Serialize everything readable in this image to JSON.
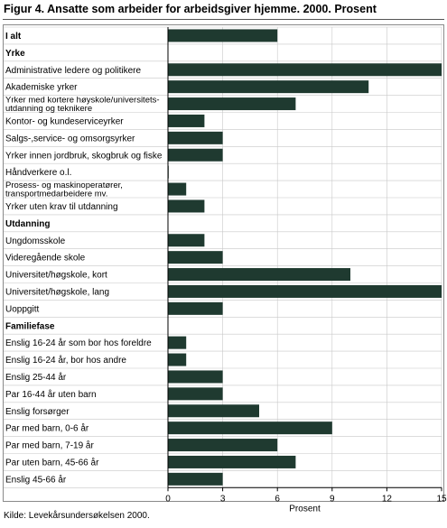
{
  "figure": {
    "title": "Figur 4. Ansatte som arbeider for arbeidsgiver hjemme. 2000. Prosent",
    "source": "Kilde: Levekårsundersøkelsen 2000."
  },
  "colors": {
    "bar": "#1f3a30",
    "grid": "#c8c8c8",
    "axis": "#000000"
  },
  "chart_data": {
    "type": "bar",
    "orientation": "horizontal",
    "title": "Figur 4. Ansatte som arbeider for arbeidsgiver hjemme. 2000. Prosent",
    "xlabel": "Prosent",
    "xlim": [
      0,
      15
    ],
    "xticks": [
      0,
      3,
      6,
      9,
      12,
      15
    ],
    "grid": true,
    "legend": "none",
    "rows": [
      {
        "label": "I alt",
        "value": 6,
        "bold": true
      },
      {
        "label": "Yrke",
        "value": null,
        "bold": true
      },
      {
        "label": "Administrative ledere og politikere",
        "value": 15
      },
      {
        "label": "Akademiske yrker",
        "value": 11
      },
      {
        "label": "Yrker med kortere høyskole/universitets-|utdanning og teknikere",
        "value": 7
      },
      {
        "label": "Kontor- og kundeserviceyrker",
        "value": 2
      },
      {
        "label": "Salgs-,service- og omsorgsyrker",
        "value": 3
      },
      {
        "label": "Yrker innen jordbruk, skogbruk og fiske",
        "value": 3
      },
      {
        "label": "Håndverkere o.l.",
        "value": 0
      },
      {
        "label": "Prosess- og maskinoperatører,|transportmedarbeidere mv.",
        "value": 1
      },
      {
        "label": "Yrker uten krav til utdanning",
        "value": 2
      },
      {
        "label": "Utdanning",
        "value": null,
        "bold": true
      },
      {
        "label": "Ungdomsskole",
        "value": 2
      },
      {
        "label": "Videregående skole",
        "value": 3
      },
      {
        "label": "Universitet/høgskole, kort",
        "value": 10
      },
      {
        "label": "Universitet/høgskole, lang",
        "value": 15
      },
      {
        "label": "Uoppgitt",
        "value": 3
      },
      {
        "label": "Familiefase",
        "value": null,
        "bold": true
      },
      {
        "label": "Enslig 16-24 år som bor hos foreldre",
        "value": 1
      },
      {
        "label": "Enslig 16-24 år, bor hos andre",
        "value": 1
      },
      {
        "label": "Enslig 25-44 år",
        "value": 3
      },
      {
        "label": "Par 16-44 år uten barn",
        "value": 3
      },
      {
        "label": "Enslig forsørger",
        "value": 5
      },
      {
        "label": "Par med barn, 0-6 år",
        "value": 9
      },
      {
        "label": "Par med barn, 7-19 år",
        "value": 6
      },
      {
        "label": "Par uten barn, 45-66 år",
        "value": 7
      },
      {
        "label": "Enslig 45-66 år",
        "value": 3
      }
    ]
  }
}
